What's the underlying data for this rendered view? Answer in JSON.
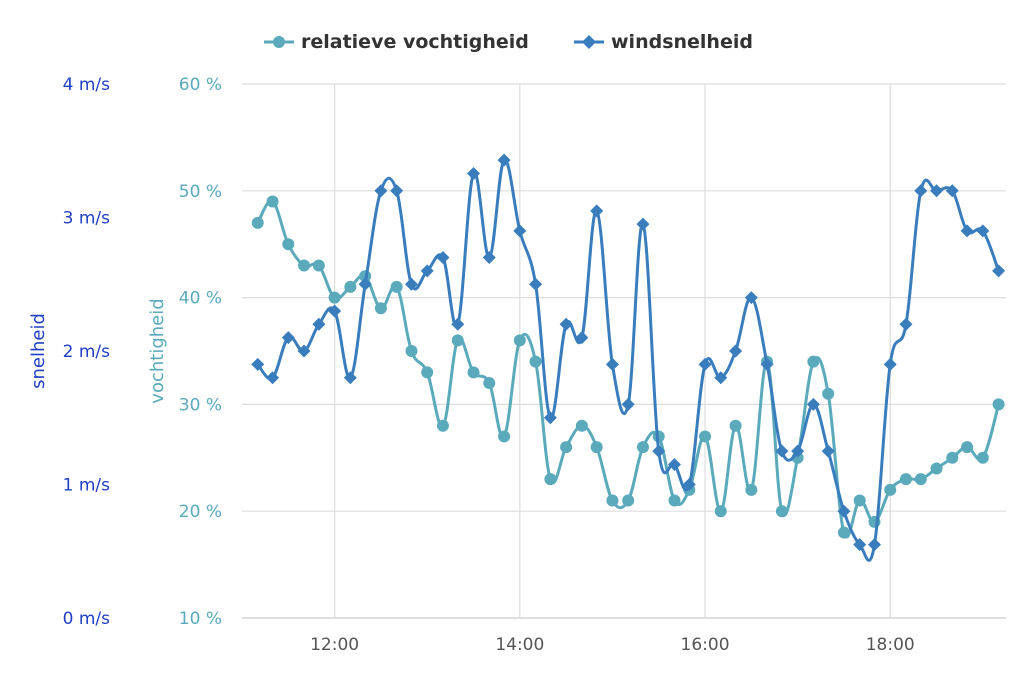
{
  "chart_data": {
    "type": "line",
    "title": "",
    "legend": {
      "position": "top-center",
      "items": [
        "relatieve vochtigheid",
        "windsnelheid"
      ]
    },
    "colors": {
      "humidity": "#5aaabb",
      "wind": "#3a7dbd",
      "speed_axis_text": "#1f3fc4",
      "grid": "#dddddd"
    },
    "xlabel": "",
    "x_range_hours": [
      11.0,
      19.25
    ],
    "x_ticks": [
      {
        "hour": 12,
        "label": "12:00"
      },
      {
        "hour": 14,
        "label": "14:00"
      },
      {
        "hour": 16,
        "label": "16:00"
      },
      {
        "hour": 18,
        "label": "18:00"
      }
    ],
    "y_axes": {
      "humidity": {
        "title": "vochtigheid",
        "range": [
          10,
          60
        ],
        "ticks": [
          10,
          20,
          30,
          40,
          50,
          60
        ],
        "tick_labels": [
          "10 %",
          "20 %",
          "30 %",
          "40 %",
          "50 %",
          "60 %"
        ]
      },
      "speed": {
        "title": "snelheid",
        "range": [
          0,
          4
        ],
        "ticks": [
          0,
          1,
          2,
          3,
          4
        ],
        "tick_labels": [
          "0 m/s",
          "1 m/s",
          "2 m/s",
          "3 m/s",
          "4 m/s"
        ]
      }
    },
    "x": [
      11.17,
      11.33,
      11.5,
      11.67,
      11.83,
      12.0,
      12.17,
      12.33,
      12.5,
      12.67,
      12.83,
      13.0,
      13.17,
      13.33,
      13.5,
      13.67,
      13.83,
      14.0,
      14.17,
      14.33,
      14.5,
      14.67,
      14.83,
      15.0,
      15.17,
      15.33,
      15.5,
      15.67,
      15.83,
      16.0,
      16.17,
      16.33,
      16.5,
      16.67,
      16.83,
      17.0,
      17.17,
      17.33,
      17.5,
      17.67,
      17.83,
      18.0,
      18.17,
      18.33,
      18.5,
      18.67,
      18.83,
      19.0,
      19.17
    ],
    "series": [
      {
        "name": "relatieve vochtigheid",
        "axis": "humidity",
        "marker": "circle",
        "values": [
          47,
          49,
          45,
          43,
          43,
          40,
          41,
          42,
          39,
          41,
          35,
          33,
          28,
          36,
          33,
          32,
          27,
          36,
          34,
          23,
          26,
          28,
          26,
          21,
          21,
          26,
          27,
          21,
          22,
          27,
          20,
          28,
          22,
          34,
          20,
          25,
          34,
          31,
          18,
          21,
          19,
          22,
          23,
          23,
          24,
          25,
          26,
          25,
          30
        ]
      },
      {
        "name": "windsnelheid",
        "axis": "speed",
        "marker": "diamond",
        "values": [
          1.9,
          1.8,
          2.1,
          2.0,
          2.2,
          2.3,
          1.8,
          2.5,
          3.2,
          3.2,
          2.5,
          2.6,
          2.7,
          2.2,
          3.33,
          2.7,
          3.43,
          2.9,
          2.5,
          1.5,
          2.2,
          2.1,
          3.05,
          1.9,
          1.6,
          2.95,
          1.25,
          1.15,
          1.0,
          1.9,
          1.8,
          2.0,
          2.4,
          1.9,
          1.25,
          1.25,
          1.6,
          1.25,
          0.8,
          0.55,
          0.55,
          1.9,
          2.2,
          3.2,
          3.2,
          3.2,
          2.9,
          2.9,
          2.6
        ]
      }
    ]
  }
}
